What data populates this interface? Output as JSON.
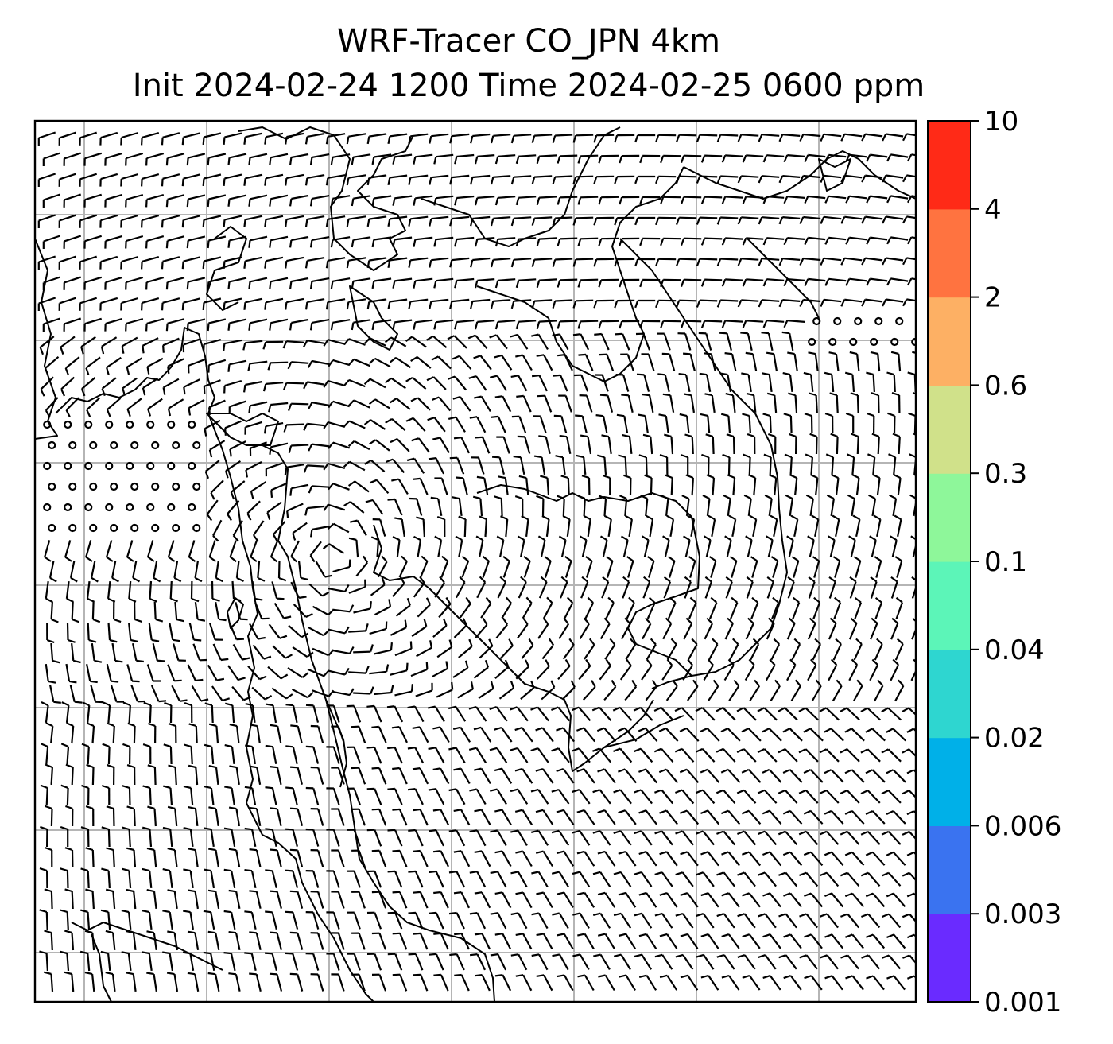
{
  "title": {
    "line1": "WRF-Tracer CO_JPN 4km",
    "line2": "Init 2024-02-24 1200 Time 2024-02-25 0600 ppm"
  },
  "colorbar": {
    "ticks": [
      "0.001",
      "0.003",
      "0.006",
      "0.02",
      "0.04",
      "0.1",
      "0.3",
      "0.6",
      "2",
      "4",
      "10"
    ],
    "colors": [
      "#6a2bff",
      "#3a73f0",
      "#00b0e8",
      "#2ed6d0",
      "#5cf5b8",
      "#8ef79a",
      "#d0e18a",
      "#fdb064",
      "#ff7340",
      "#ff2a17"
    ]
  },
  "map": {
    "frame_color": "#000000",
    "gridline_color": "#b5b5b5",
    "coast_color": "#000000",
    "barb_color": "#000000",
    "calm_symbol": "circle",
    "grid": true
  }
}
